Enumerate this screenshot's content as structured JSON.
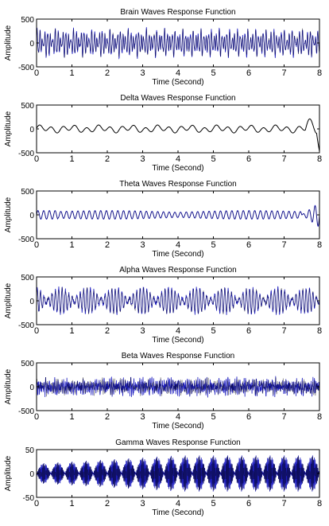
{
  "colors": {
    "background": "#ffffff",
    "axis": "#000000",
    "signal_dark": "#000000",
    "signal_blue": "#1f1fbf"
  },
  "chart_data": [
    {
      "type": "line",
      "title": "Brain Waves Response Function",
      "xlabel": "Time (Second)",
      "ylabel": "Amplitude",
      "xlim": [
        0,
        8
      ],
      "ylim": [
        -500,
        500
      ],
      "xticks": [
        "0",
        "1",
        "2",
        "3",
        "4",
        "5",
        "6",
        "7",
        "8"
      ],
      "yticks": [
        "500",
        "0",
        "-500"
      ],
      "grid": false,
      "signal": {
        "description_values": {
          "amplitude_range": [
            -300,
            300
          ],
          "frequency_hz": 13.6
        },
        "shape": "dense-oscillation"
      }
    },
    {
      "type": "line",
      "title": "Delta Waves Response Function",
      "xlabel": "Time (Second)",
      "ylabel": "Amplitude",
      "xlim": [
        0,
        8
      ],
      "ylim": [
        -500,
        500
      ],
      "xticks": [
        "0",
        "1",
        "2",
        "3",
        "4",
        "5",
        "6",
        "7",
        "8"
      ],
      "yticks": [
        "500",
        "0",
        "-500"
      ],
      "grid": false,
      "signal": {
        "description_values": {
          "amplitude_range": [
            -80,
            100
          ],
          "frequency_hz": 3,
          "end_spike": [
            200,
            -450
          ]
        },
        "shape": "smooth-wave"
      }
    },
    {
      "type": "line",
      "title": "Theta Waves Response Function",
      "xlabel": "Time (Second)",
      "ylabel": "Amplitude",
      "xlim": [
        0,
        8
      ],
      "ylim": [
        -500,
        500
      ],
      "xticks": [
        "0",
        "1",
        "2",
        "3",
        "4",
        "5",
        "6",
        "7",
        "8"
      ],
      "yticks": [
        "500",
        "0",
        "-500"
      ],
      "grid": false,
      "signal": {
        "description_values": {
          "amplitude_range": [
            -120,
            120
          ],
          "frequency_hz": 6,
          "end_spike": [
            260,
            -280
          ]
        },
        "shape": "modulated-wave"
      }
    },
    {
      "type": "line",
      "title": "Alpha Waves Response Function",
      "xlabel": "Time (Second)",
      "ylabel": "Amplitude",
      "xlim": [
        0,
        8
      ],
      "ylim": [
        -500,
        500
      ],
      "xticks": [
        "0",
        "1",
        "2",
        "3",
        "4",
        "5",
        "6",
        "7",
        "8"
      ],
      "yticks": [
        "500",
        "0",
        "-500"
      ],
      "grid": false,
      "signal": {
        "description_values": {
          "amplitude_range": [
            -350,
            320
          ],
          "frequency_hz": 10
        },
        "shape": "beat-oscillation"
      }
    },
    {
      "type": "line",
      "title": "Beta Waves Response Function",
      "xlabel": "Time (Second)",
      "ylabel": "Amplitude",
      "xlim": [
        0,
        8
      ],
      "ylim": [
        -500,
        500
      ],
      "xticks": [
        "0",
        "1",
        "2",
        "3",
        "4",
        "5",
        "6",
        "7",
        "8"
      ],
      "yticks": [
        "500",
        "0",
        "-500"
      ],
      "grid": false,
      "signal": {
        "description_values": {
          "amplitude_range": [
            -200,
            250
          ],
          "frequency_hz": 20
        },
        "shape": "noisy-oscillation"
      }
    },
    {
      "type": "line",
      "title": "Gamma Waves Response Function",
      "xlabel": "Time (Second)",
      "ylabel": "Amplitude",
      "xlim": [
        0,
        8
      ],
      "ylim": [
        -50,
        50
      ],
      "xticks": [
        "0",
        "1",
        "2",
        "3",
        "4",
        "5",
        "6",
        "7",
        "8"
      ],
      "yticks": [
        "50",
        "0",
        "-50"
      ],
      "grid": false,
      "signal": {
        "description_values": {
          "amplitude_range": [
            -42,
            42
          ],
          "frequency_hz": 40,
          "envelope_bursts": 20
        },
        "shape": "amplitude-modulated-bursts"
      }
    }
  ]
}
